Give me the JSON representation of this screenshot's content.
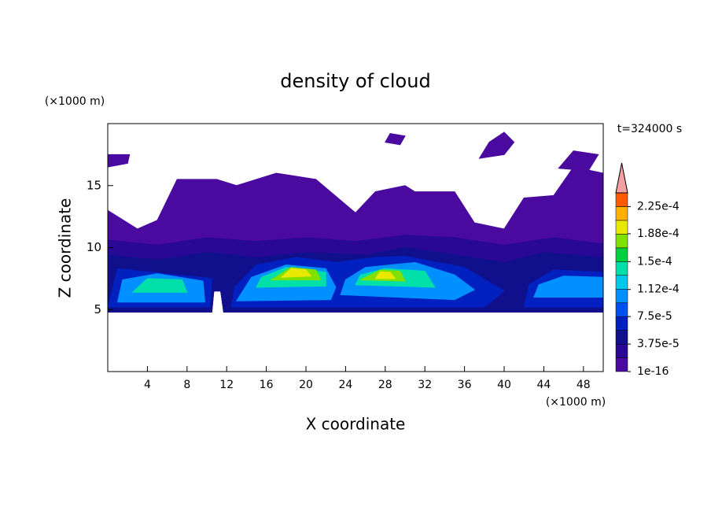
{
  "chart_data": {
    "type": "contour",
    "title": "density of cloud",
    "x_label": "X coordinate",
    "y_label": "Z coordinate",
    "x_unit": "(×1000 m)",
    "y_unit": "(×1000 m)",
    "time_label": "t=324000 s",
    "xlim": [
      0,
      50
    ],
    "ylim": [
      0,
      20
    ],
    "xticks": [
      4,
      8,
      12,
      16,
      20,
      24,
      28,
      32,
      36,
      40,
      44,
      48
    ],
    "yticks": [
      5,
      10,
      15
    ],
    "colorbar": {
      "lim": [
        1e-16,
        0.00024375
      ],
      "levels": [
        1e-16,
        1.875e-05,
        3.75e-05,
        5.625e-05,
        7.5e-05,
        9.375e-05,
        0.0001125,
        0.00013125,
        0.00015,
        0.00016875,
        0.0001875,
        0.00020625,
        0.000225
      ],
      "colors": [
        "#4a0aa0",
        "#2a0896",
        "#10108c",
        "#0020c0",
        "#0050f0",
        "#0090ff",
        "#00c8e8",
        "#00e0a8",
        "#00d040",
        "#80e000",
        "#e8e800",
        "#ffb000",
        "#ff5a00"
      ],
      "extend_color": "#f4a0a0",
      "ticks": [
        {
          "value": 1e-16,
          "label": "1e-16"
        },
        {
          "value": 3.75e-05,
          "label": "3.75e-5"
        },
        {
          "value": 7.5e-05,
          "label": "7.5e-5"
        },
        {
          "value": 0.000112,
          "label": "1.12e-4"
        },
        {
          "value": 0.00015,
          "label": "1.5e-4"
        },
        {
          "value": 0.000188,
          "label": "1.88e-4"
        },
        {
          "value": 0.000225,
          "label": "2.25e-4"
        }
      ]
    },
    "regions": [
      {
        "level": 1e-16,
        "points": [
          [
            0,
            4.8
          ],
          [
            10.5,
            4.8
          ],
          [
            10.7,
            6.5
          ],
          [
            11.4,
            6.5
          ],
          [
            11.7,
            4.8
          ],
          [
            50,
            4.8
          ],
          [
            50,
            16
          ],
          [
            47,
            16.5
          ],
          [
            45,
            14.2
          ],
          [
            42,
            14
          ],
          [
            40,
            11.5
          ],
          [
            37,
            12
          ],
          [
            35,
            14.5
          ],
          [
            31,
            14.5
          ],
          [
            30,
            15
          ],
          [
            27,
            14.5
          ],
          [
            25,
            12.8
          ],
          [
            21,
            15.5
          ],
          [
            17,
            16
          ],
          [
            13,
            15
          ],
          [
            11,
            15.5
          ],
          [
            7,
            15.5
          ],
          [
            5,
            12.2
          ],
          [
            3,
            11.5
          ],
          [
            0,
            13
          ]
        ]
      },
      {
        "level": 1e-16,
        "points": [
          [
            0,
            16.5
          ],
          [
            2,
            16.8
          ],
          [
            2.2,
            17.5
          ],
          [
            0,
            17.5
          ]
        ]
      },
      {
        "level": 1e-16,
        "points": [
          [
            37.5,
            17.2
          ],
          [
            40,
            17.5
          ],
          [
            41,
            18.5
          ],
          [
            40,
            19.3
          ],
          [
            38.5,
            18.5
          ]
        ]
      },
      {
        "level": 1e-16,
        "points": [
          [
            45.5,
            16.4
          ],
          [
            48.5,
            16.2
          ],
          [
            49.5,
            17.5
          ],
          [
            47,
            17.8
          ]
        ]
      },
      {
        "level": 1e-16,
        "points": [
          [
            28,
            18.5
          ],
          [
            29.5,
            18.3
          ],
          [
            30,
            19
          ],
          [
            28.5,
            19.2
          ]
        ]
      },
      {
        "level": 1.875e-05,
        "points": [
          [
            0,
            4.8
          ],
          [
            10.5,
            4.8
          ],
          [
            10.7,
            6.5
          ],
          [
            11.4,
            6.5
          ],
          [
            11.7,
            4.8
          ],
          [
            50,
            4.8
          ],
          [
            50,
            10.3
          ],
          [
            45,
            10.8
          ],
          [
            40,
            10.2
          ],
          [
            35,
            10.8
          ],
          [
            30,
            11
          ],
          [
            25,
            10.5
          ],
          [
            20,
            10.8
          ],
          [
            15,
            10.5
          ],
          [
            10,
            10.8
          ],
          [
            5,
            10.2
          ],
          [
            0,
            10.6
          ]
        ]
      },
      {
        "level": 3.75e-05,
        "points": [
          [
            0,
            4.8
          ],
          [
            10.5,
            4.8
          ],
          [
            10.7,
            6.5
          ],
          [
            11.4,
            6.5
          ],
          [
            11.7,
            4.8
          ],
          [
            50,
            4.8
          ],
          [
            50,
            9.2
          ],
          [
            44,
            9.6
          ],
          [
            40,
            8.8
          ],
          [
            35,
            9.4
          ],
          [
            30,
            10
          ],
          [
            26,
            9.4
          ],
          [
            20,
            9.6
          ],
          [
            15,
            9.2
          ],
          [
            10,
            9.6
          ],
          [
            5,
            9
          ],
          [
            0,
            9.4
          ]
        ]
      },
      {
        "level": 5.625e-05,
        "points": [
          [
            0,
            5.2
          ],
          [
            10.3,
            5.2
          ],
          [
            10.5,
            7.5
          ],
          [
            1,
            8.3
          ]
        ]
      },
      {
        "level": 5.625e-05,
        "points": [
          [
            12.5,
            5.2
          ],
          [
            38,
            5.2
          ],
          [
            40,
            6.5
          ],
          [
            36,
            8.4
          ],
          [
            30,
            9.3
          ],
          [
            27,
            9.2
          ],
          [
            23,
            8.8
          ],
          [
            19,
            9.2
          ],
          [
            15,
            8.6
          ],
          [
            12.8,
            6.8
          ]
        ]
      },
      {
        "level": 5.625e-05,
        "points": [
          [
            42,
            5.2
          ],
          [
            50,
            5.2
          ],
          [
            50,
            8
          ],
          [
            45,
            8.2
          ],
          [
            42.5,
            7
          ]
        ]
      },
      {
        "level": 9.375e-05,
        "points": [
          [
            1,
            5.6
          ],
          [
            9.8,
            5.6
          ],
          [
            9.6,
            7.3
          ],
          [
            5,
            7.9
          ],
          [
            1.5,
            7.4
          ]
        ]
      },
      {
        "level": 9.375e-05,
        "points": [
          [
            13,
            5.7
          ],
          [
            22.5,
            5.8
          ],
          [
            23,
            6.8
          ],
          [
            22,
            8.3
          ],
          [
            18,
            8.6
          ],
          [
            14.5,
            7.6
          ]
        ]
      },
      {
        "level": 9.375e-05,
        "points": [
          [
            23.5,
            6.2
          ],
          [
            35,
            5.8
          ],
          [
            37,
            6.6
          ],
          [
            35,
            7.8
          ],
          [
            31,
            8.8
          ],
          [
            26,
            8.4
          ],
          [
            24,
            7.4
          ]
        ]
      },
      {
        "level": 9.375e-05,
        "points": [
          [
            43,
            6
          ],
          [
            50,
            6
          ],
          [
            50,
            7.6
          ],
          [
            46,
            7.7
          ],
          [
            43.5,
            7
          ]
        ]
      },
      {
        "level": 0.00013125,
        "points": [
          [
            2.5,
            6.4
          ],
          [
            8,
            6.4
          ],
          [
            7.5,
            7.4
          ],
          [
            4,
            7.5
          ]
        ]
      },
      {
        "level": 0.00013125,
        "points": [
          [
            15,
            6.8
          ],
          [
            22,
            6.9
          ],
          [
            22,
            8
          ],
          [
            18,
            8.4
          ],
          [
            15.5,
            7.6
          ]
        ]
      },
      {
        "level": 0.00013125,
        "points": [
          [
            25,
            7
          ],
          [
            33,
            6.8
          ],
          [
            32,
            8.1
          ],
          [
            28,
            8.3
          ],
          [
            25.5,
            7.8
          ]
        ]
      },
      {
        "level": 0.00016875,
        "points": [
          [
            16.5,
            7.4
          ],
          [
            21.5,
            7.4
          ],
          [
            21,
            8.2
          ],
          [
            18.5,
            8.4
          ]
        ]
      },
      {
        "level": 0.00016875,
        "points": [
          [
            25.5,
            7.4
          ],
          [
            30,
            7.3
          ],
          [
            29.5,
            8.1
          ],
          [
            27.5,
            8.2
          ]
        ]
      },
      {
        "level": 0.0001875,
        "points": [
          [
            17.5,
            7.6
          ],
          [
            20.5,
            7.7
          ],
          [
            20,
            8.2
          ],
          [
            18.5,
            8.3
          ]
        ]
      },
      {
        "level": 0.0001875,
        "points": [
          [
            27,
            7.5
          ],
          [
            29,
            7.5
          ],
          [
            28.5,
            8
          ],
          [
            27.5,
            8.05
          ]
        ]
      }
    ]
  }
}
